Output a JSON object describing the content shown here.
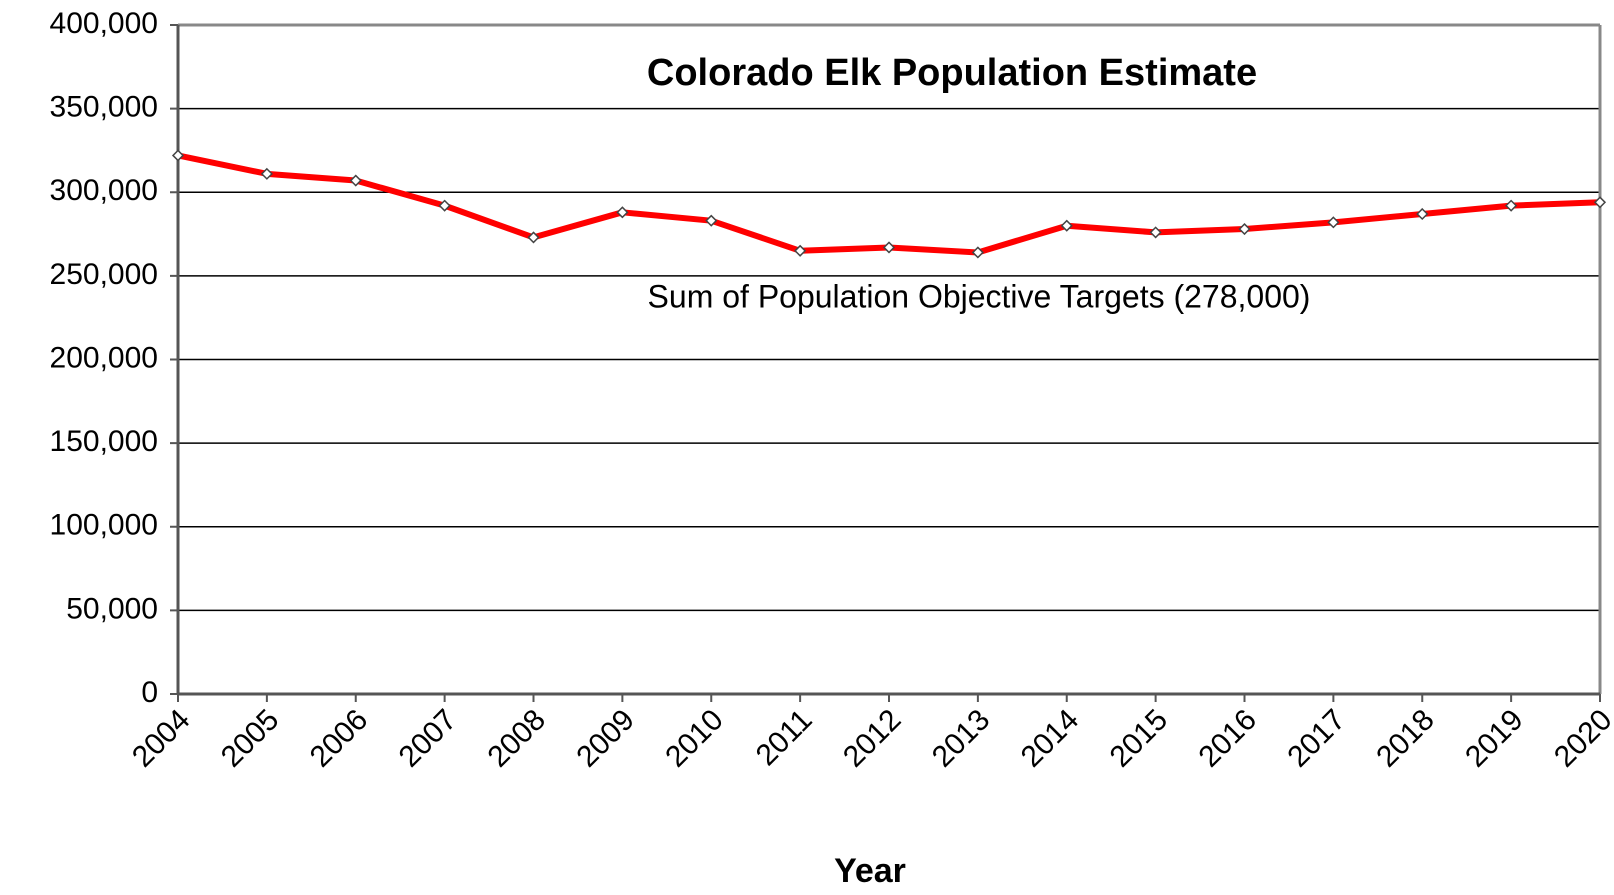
{
  "chart_data": {
    "type": "line",
    "title": "Colorado Elk Population Estimate",
    "annotation": "Sum of  Population Objective Targets (278,000)",
    "x_label": "Year",
    "x": [
      2004,
      2005,
      2006,
      2007,
      2008,
      2009,
      2010,
      2011,
      2012,
      2013,
      2014,
      2015,
      2016,
      2017,
      2018,
      2019,
      2020
    ],
    "series": [
      {
        "name": "Colorado Elk Population Estimate",
        "color": "#ff0000",
        "values": [
          322000,
          311000,
          307000,
          292000,
          273000,
          288000,
          283000,
          265000,
          267000,
          264000,
          280000,
          276000,
          278000,
          282000,
          287000,
          292000,
          294000
        ]
      }
    ],
    "xlim": [
      2004,
      2020
    ],
    "xticks": [
      2004,
      2005,
      2006,
      2007,
      2008,
      2009,
      2010,
      2011,
      2012,
      2013,
      2014,
      2015,
      2016,
      2017,
      2018,
      2019,
      2020
    ],
    "ylim": [
      0,
      400000
    ],
    "yticks": [
      0,
      {
        "value": 50000,
        "label": "50,000"
      },
      {
        "value": 100000,
        "label": "100,000"
      },
      {
        "value": 150000,
        "label": "150,000"
      },
      {
        "value": 200000,
        "label": "200,000"
      },
      {
        "value": 250000,
        "label": "250,000"
      },
      {
        "value": 300000,
        "label": "300,000"
      },
      {
        "value": 350000,
        "label": "350,000"
      },
      {
        "value": 400000,
        "label": "400,000"
      }
    ],
    "grid": true
  }
}
